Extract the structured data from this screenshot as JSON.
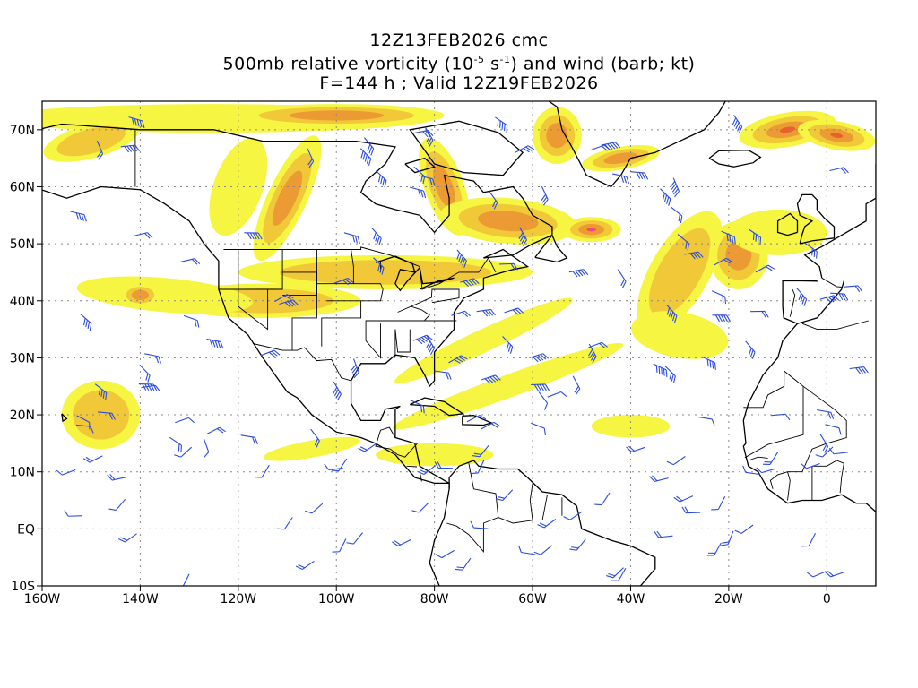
{
  "title": {
    "line1": "12Z13FEB2026 cmc",
    "line2_a": "500mb relative vorticity (10",
    "line2_exp1": "-5",
    "line2_b": " s",
    "line2_exp2": "-1",
    "line2_c": ") and wind (barb; kt)",
    "line3": "F=144 h ; Valid 12Z19FEB2026"
  },
  "axes": {
    "lon_range": [
      -160,
      10
    ],
    "lat_range": [
      -10,
      75
    ],
    "x_ticks": [
      {
        "lon": -160,
        "label": "160W"
      },
      {
        "lon": -140,
        "label": "140W"
      },
      {
        "lon": -120,
        "label": "120W"
      },
      {
        "lon": -100,
        "label": "100W"
      },
      {
        "lon": -80,
        "label": "80W"
      },
      {
        "lon": -60,
        "label": "60W"
      },
      {
        "lon": -40,
        "label": "40W"
      },
      {
        "lon": -20,
        "label": "20W"
      },
      {
        "lon": 0,
        "label": "0"
      }
    ],
    "y_ticks": [
      {
        "lat": 70,
        "label": "70N"
      },
      {
        "lat": 60,
        "label": "60N"
      },
      {
        "lat": 50,
        "label": "50N"
      },
      {
        "lat": 40,
        "label": "40N"
      },
      {
        "lat": 30,
        "label": "30N"
      },
      {
        "lat": 20,
        "label": "20N"
      },
      {
        "lat": 10,
        "label": "10N"
      },
      {
        "lat": 0,
        "label": "EQ"
      },
      {
        "lat": -10,
        "label": "10S"
      }
    ]
  },
  "colors": {
    "shade_light": "#f5f542",
    "shade_mid": "#f0c838",
    "shade_orange": "#ec9a33",
    "shade_red": "#e8602a",
    "shade_max": "#f040a0",
    "barb": "#2a4be0",
    "grid": "#888888",
    "coast": "#000000"
  },
  "vorticity_regions": [
    {
      "lon": -125,
      "lat": 72,
      "rlon": 45,
      "rlat": 2.5,
      "level": 1,
      "rot": 0
    },
    {
      "lon": -100,
      "lat": 72.5,
      "rlon": 22,
      "rlat": 2,
      "level": 3,
      "rot": 0
    },
    {
      "lon": -150,
      "lat": 68,
      "rlon": 10,
      "rlat": 3,
      "level": 2,
      "rot": -15
    },
    {
      "lon": -110,
      "lat": 58,
      "rlon": 4,
      "rlat": 12,
      "level": 3,
      "rot": 25
    },
    {
      "lon": -120,
      "lat": 60,
      "rlon": 5,
      "rlat": 9,
      "level": 1,
      "rot": 20
    },
    {
      "lon": -78,
      "lat": 60,
      "rlon": 4,
      "rlat": 9,
      "level": 3,
      "rot": -20
    },
    {
      "lon": -65,
      "lat": 54,
      "rlon": 14,
      "rlat": 4,
      "level": 3,
      "rot": 5
    },
    {
      "lon": -48,
      "lat": 52.5,
      "rlon": 6,
      "rlat": 2.2,
      "level": 5,
      "rot": 0
    },
    {
      "lon": -55,
      "lat": 69,
      "rlon": 5,
      "rlat": 5,
      "level": 3,
      "rot": 0
    },
    {
      "lon": -42,
      "lat": 65,
      "rlon": 8,
      "rlat": 2,
      "level": 3,
      "rot": -10
    },
    {
      "lon": -8,
      "lat": 70,
      "rlon": 10,
      "rlat": 3,
      "level": 4,
      "rot": -10
    },
    {
      "lon": 2,
      "lat": 69,
      "rlon": 8,
      "rlat": 2.5,
      "level": 4,
      "rot": 10
    },
    {
      "lon": -90,
      "lat": 45,
      "rlon": 30,
      "rlat": 3,
      "level": 2,
      "rot": 0
    },
    {
      "lon": -115,
      "lat": 40,
      "rlon": 20,
      "rlat": 3,
      "level": 2,
      "rot": 0
    },
    {
      "lon": -135,
      "lat": 41,
      "rlon": 18,
      "rlat": 3,
      "level": 1,
      "rot": 5
    },
    {
      "lon": -140,
      "lat": 41,
      "rlon": 4,
      "rlat": 2,
      "level": 3,
      "rot": 0
    },
    {
      "lon": -148,
      "lat": 20,
      "rlon": 8,
      "rlat": 6,
      "level": 2,
      "rot": 0
    },
    {
      "lon": -70,
      "lat": 33,
      "rlon": 20,
      "rlat": 2,
      "level": 1,
      "rot": -25
    },
    {
      "lon": -65,
      "lat": 25,
      "rlon": 25,
      "rlat": 2,
      "level": 1,
      "rot": -20
    },
    {
      "lon": -40,
      "lat": 18,
      "rlon": 8,
      "rlat": 2,
      "level": 1,
      "rot": 0
    },
    {
      "lon": -105,
      "lat": 14,
      "rlon": 10,
      "rlat": 1.5,
      "level": 1,
      "rot": -10
    },
    {
      "lon": -80,
      "lat": 13,
      "rlon": 12,
      "rlat": 2,
      "level": 1,
      "rot": 0
    },
    {
      "lon": -30,
      "lat": 45,
      "rlon": 6,
      "rlat": 12,
      "level": 2,
      "rot": 30
    },
    {
      "lon": -18,
      "lat": 48,
      "rlon": 6,
      "rlat": 6,
      "level": 3,
      "rot": 0
    },
    {
      "lon": -30,
      "lat": 34,
      "rlon": 10,
      "rlat": 4,
      "level": 1,
      "rot": 10
    },
    {
      "lon": -10,
      "lat": 52,
      "rlon": 10,
      "rlat": 4,
      "level": 1,
      "rot": 0
    }
  ],
  "barb_count": 160
}
